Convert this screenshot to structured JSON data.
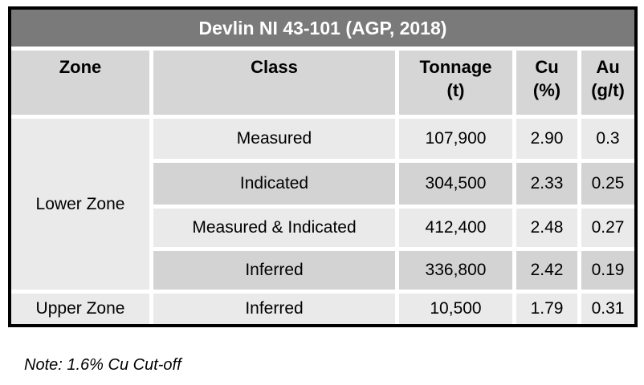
{
  "table": {
    "title": "Devlin NI 43-101 (AGP, 2018)",
    "columns": [
      {
        "name": "Zone",
        "unit": ""
      },
      {
        "name": "Class",
        "unit": ""
      },
      {
        "name": "Tonnage",
        "unit": "(t)"
      },
      {
        "name": "Cu",
        "unit": "(%)"
      },
      {
        "name": "Au",
        "unit": "(g/t)"
      }
    ],
    "zones": [
      {
        "label": "Lower Zone"
      },
      {
        "label": "Upper Zone"
      }
    ],
    "rows": [
      {
        "class": "Measured",
        "tonnage": "107,900",
        "cu": "2.90",
        "au": "0.3"
      },
      {
        "class": "Indicated",
        "tonnage": "304,500",
        "cu": "2.33",
        "au": "0.25"
      },
      {
        "class": "Measured & Indicated",
        "tonnage": "412,400",
        "cu": "2.48",
        "au": "0.27"
      },
      {
        "class": "Inferred",
        "tonnage": "336,800",
        "cu": "2.42",
        "au": "0.19"
      },
      {
        "class": "Inferred",
        "tonnage": "10,500",
        "cu": "1.79",
        "au": "0.31"
      }
    ],
    "note": "Note: 1.6% Cu Cut-off",
    "colors": {
      "title_bg": "#7a7a7a",
      "title_text": "#ffffff",
      "header_bg": "#d6d6d6",
      "row_light": "#eaeaea",
      "row_dark": "#d3d3d3",
      "border": "#000000",
      "text": "#000000"
    }
  },
  "chart_data": {
    "type": "table",
    "title": "Devlin NI 43-101 (AGP, 2018)",
    "columns": [
      "Zone",
      "Class",
      "Tonnage (t)",
      "Cu (%)",
      "Au (g/t)"
    ],
    "rows": [
      [
        "Lower Zone",
        "Measured",
        107900,
        2.9,
        0.3
      ],
      [
        "Lower Zone",
        "Indicated",
        304500,
        2.33,
        0.25
      ],
      [
        "Lower Zone",
        "Measured & Indicated",
        412400,
        2.48,
        0.27
      ],
      [
        "Lower Zone",
        "Inferred",
        336800,
        2.42,
        0.19
      ],
      [
        "Upper Zone",
        "Inferred",
        10500,
        1.79,
        0.31
      ]
    ],
    "note": "Note: 1.6% Cu Cut-off",
    "layout_hints": {
      "zone_column_rowspans": {
        "Lower Zone": 4,
        "Upper Zone": 1
      }
    }
  }
}
